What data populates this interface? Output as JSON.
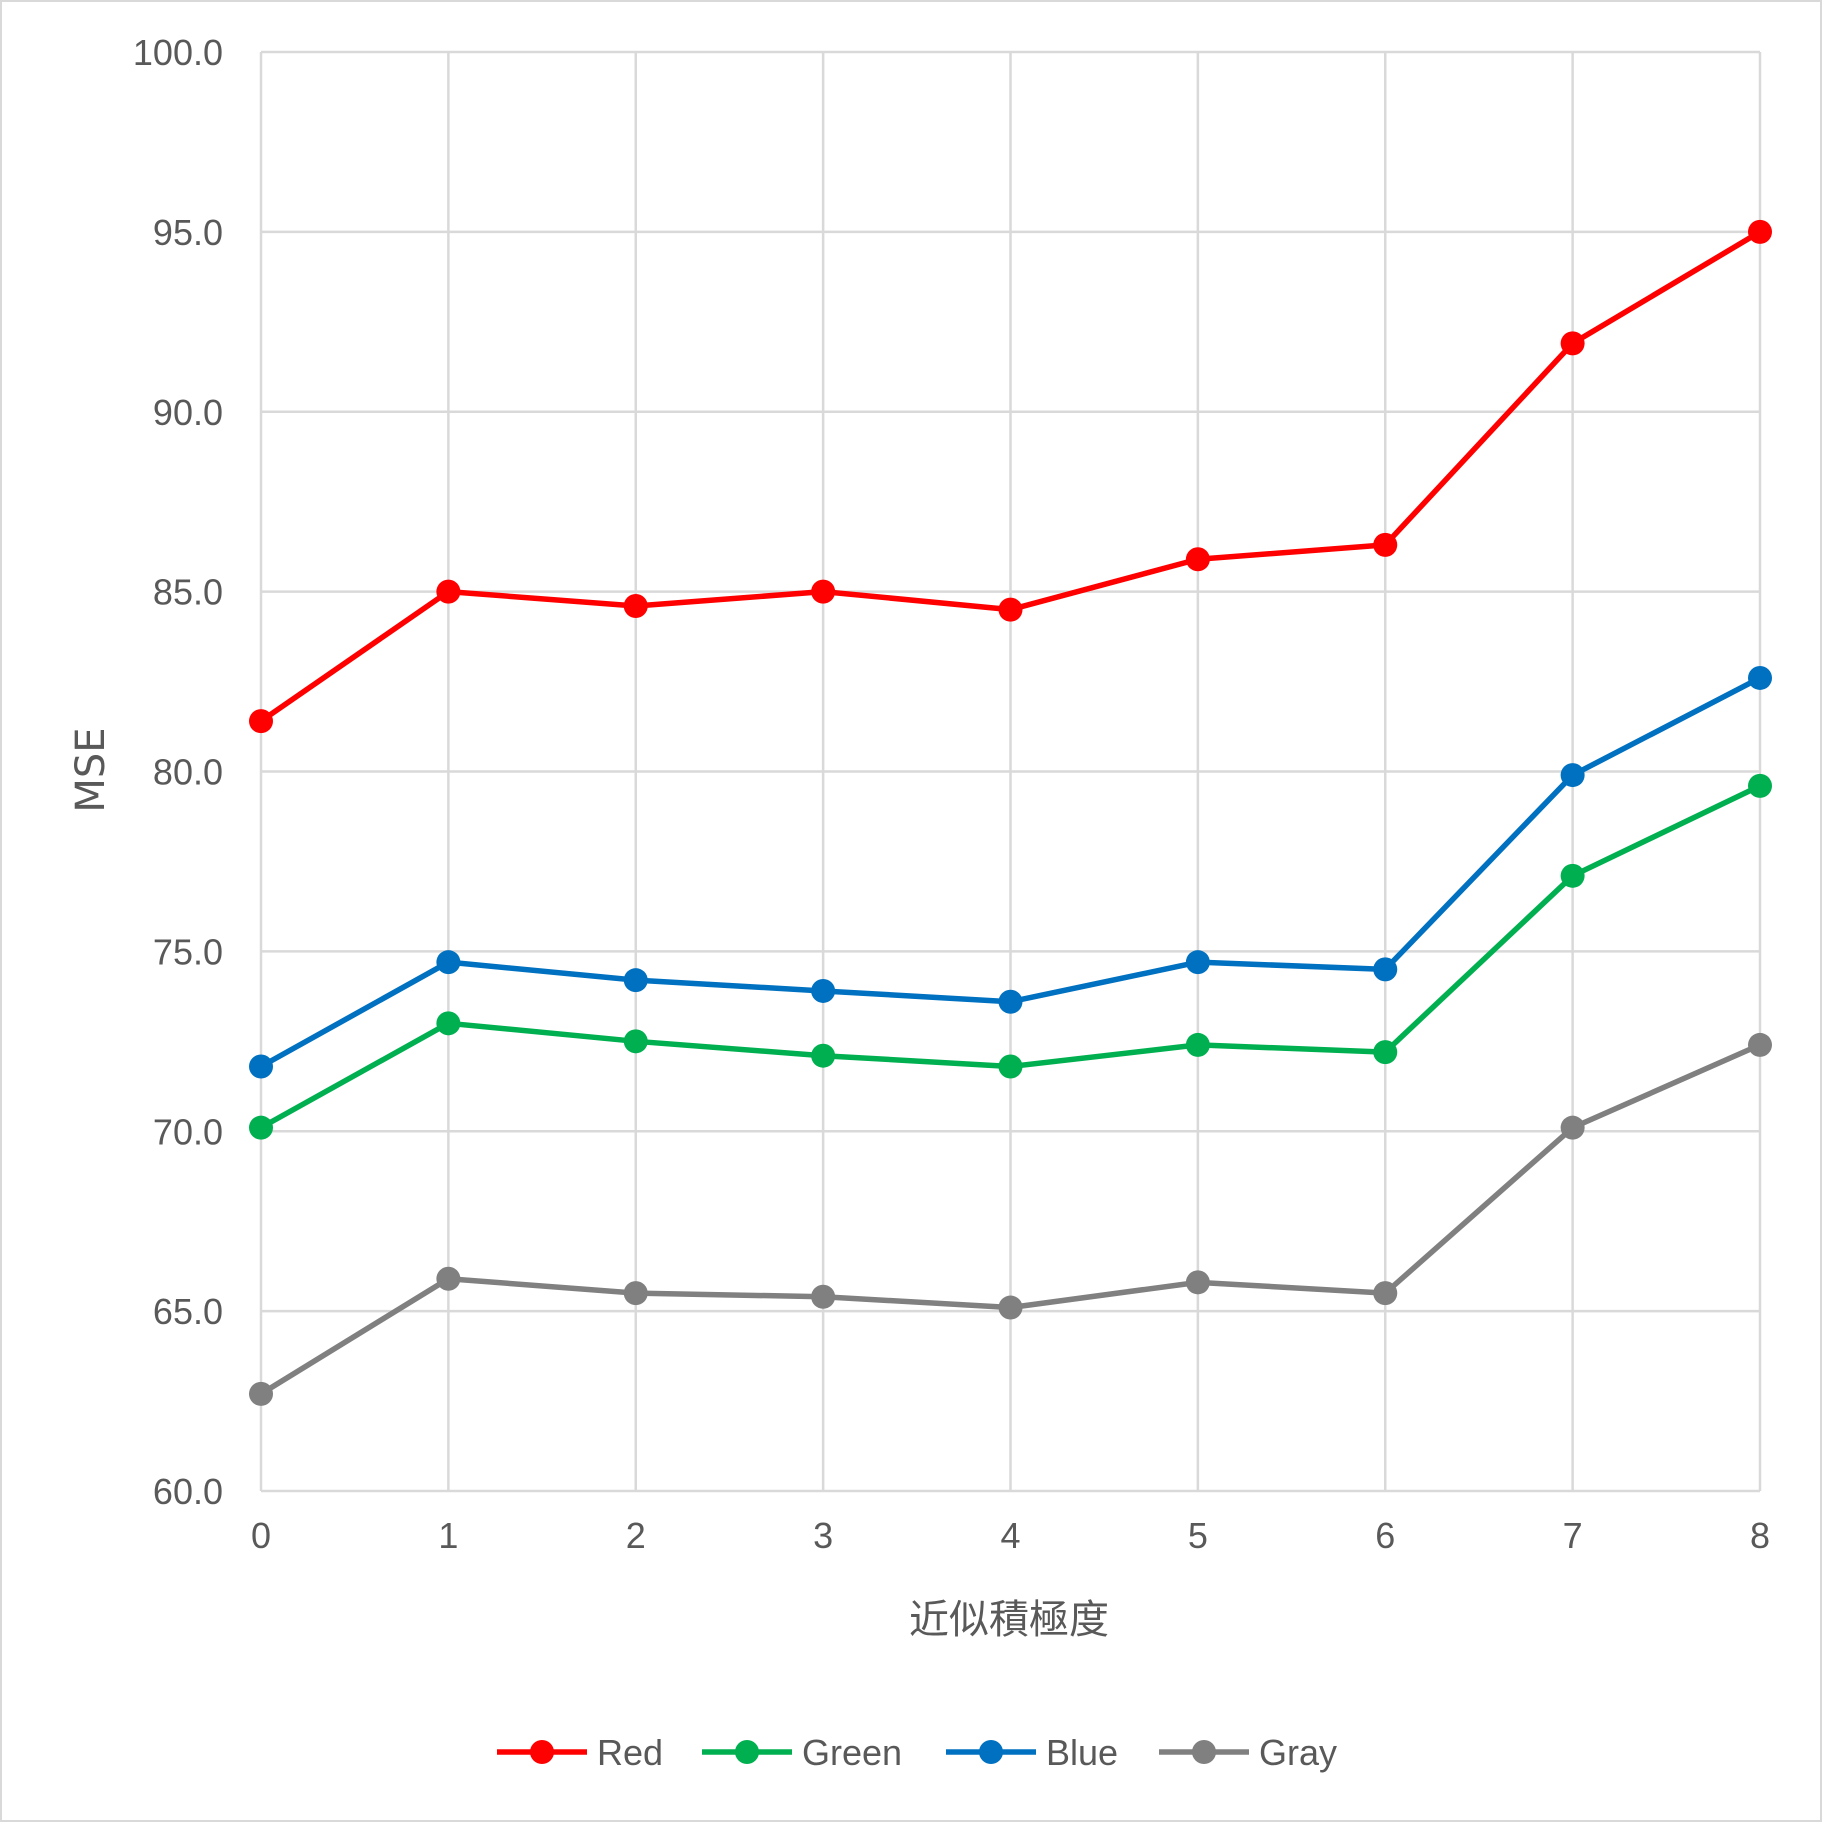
{
  "chart_data": {
    "type": "line",
    "title": "",
    "xlabel": "近似積極度",
    "ylabel": "MSE",
    "x": [
      0,
      1,
      2,
      3,
      4,
      5,
      6,
      7,
      8
    ],
    "x_tick_labels": [
      "0",
      "1",
      "2",
      "3",
      "4",
      "5",
      "6",
      "7",
      "8"
    ],
    "ylim": [
      60,
      100
    ],
    "y_tick_labels": [
      "60.0",
      "65.0",
      "70.0",
      "75.0",
      "80.0",
      "85.0",
      "90.0",
      "95.0",
      "100.0"
    ],
    "y_ticks": [
      60,
      65,
      70,
      75,
      80,
      85,
      90,
      95,
      100
    ],
    "grid": true,
    "legend_position": "bottom",
    "series": [
      {
        "name": "Red",
        "color": "#ff0000",
        "values": [
          81.4,
          85.0,
          84.6,
          85.0,
          84.5,
          85.9,
          86.3,
          91.9,
          95.0
        ]
      },
      {
        "name": "Green",
        "color": "#00b050",
        "values": [
          70.1,
          73.0,
          72.5,
          72.1,
          71.8,
          72.4,
          72.2,
          77.1,
          79.6
        ]
      },
      {
        "name": "Blue",
        "color": "#0070c0",
        "values": [
          71.8,
          74.7,
          74.2,
          73.9,
          73.6,
          74.7,
          74.5,
          79.9,
          82.6
        ]
      },
      {
        "name": "Gray",
        "color": "#808080",
        "values": [
          62.7,
          65.9,
          65.5,
          65.4,
          65.1,
          65.8,
          65.5,
          70.1,
          72.4
        ]
      }
    ]
  }
}
